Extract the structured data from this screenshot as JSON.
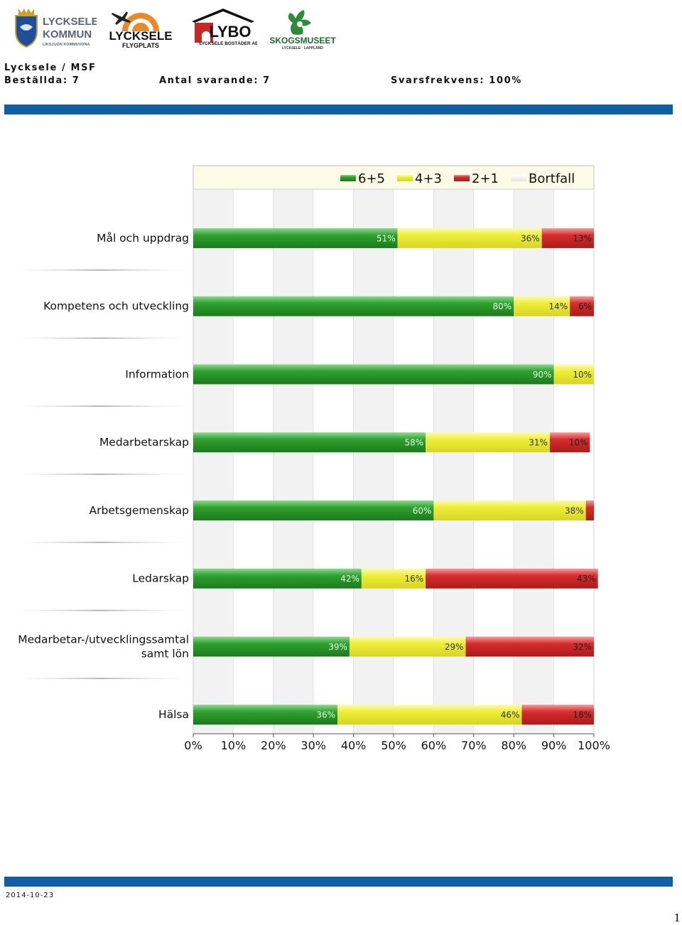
{
  "header": {
    "logos": [
      {
        "name": "lycksele-kommun-logo",
        "lines": [
          "LYCKSELE",
          "KOMMUN",
          "LIKSJUON KOMMUVDNA"
        ]
      },
      {
        "name": "lycksele-flygplats-logo",
        "lines": [
          "LYCKSELE",
          "FLYGPLATS"
        ]
      },
      {
        "name": "lybo-logo",
        "lines": [
          "LYBO",
          "LYCKSELE BOSTÄDER AB"
        ]
      },
      {
        "name": "skogsmuseet-logo",
        "lines": [
          "SKOGSMUSEET",
          "LYCKSELE · LAPPLAND"
        ]
      }
    ],
    "path": "Lycksele / MSF",
    "ordered": "Beställda: 7",
    "respondents": "Antal svarande: 7",
    "response_rate": "Svarsfrekvens: 100%"
  },
  "footer": {
    "date": "2014-10-23",
    "page": "1"
  },
  "colors": {
    "accent_bar": "#0f5fa6",
    "green": "#2ea22e",
    "yellow": "#eeee3a",
    "red": "#d72d2d",
    "grey": "#f2f2f2"
  },
  "chart_data": {
    "type": "bar",
    "orientation": "horizontal",
    "stacked": true,
    "percent": true,
    "xlim": [
      0,
      100
    ],
    "x_ticks": [
      "0%",
      "10%",
      "20%",
      "30%",
      "40%",
      "50%",
      "60%",
      "70%",
      "80%",
      "90%",
      "100%"
    ],
    "legend_position": "top",
    "legend": [
      "6+5",
      "4+3",
      "2+1",
      "Bortfall"
    ],
    "categories": [
      [
        "Mål och uppdrag"
      ],
      [
        "Kompetens och utveckling"
      ],
      [
        "Information"
      ],
      [
        "Medarbetarskap"
      ],
      [
        "Arbetsgemenskap"
      ],
      [
        "Ledarskap"
      ],
      [
        "Medarbetar-/utvecklingssamtal",
        "samt lön"
      ],
      [
        "Hälsa"
      ]
    ],
    "series": [
      {
        "name": "6+5",
        "values": [
          51,
          80,
          90,
          58,
          60,
          42,
          39,
          36
        ],
        "labels": [
          "51%",
          "80%",
          "90%",
          "58%",
          "60%",
          "42%",
          "39%",
          "36%"
        ]
      },
      {
        "name": "4+3",
        "values": [
          36,
          14,
          10,
          31,
          38,
          16,
          29,
          46
        ],
        "labels": [
          "36%",
          "14%",
          "10%",
          "31%",
          "38%",
          "16%",
          "29%",
          "46%"
        ]
      },
      {
        "name": "2+1",
        "values": [
          13,
          6,
          0,
          10,
          2,
          43,
          32,
          18
        ],
        "labels": [
          "13%",
          "6%",
          "",
          "10%",
          "",
          "43%",
          "32%",
          "18%"
        ]
      },
      {
        "name": "Bortfall",
        "values": [
          0,
          0,
          0,
          0,
          0,
          0,
          0,
          0
        ],
        "labels": [
          "",
          "",
          "",
          "",
          "",
          "",
          "",
          ""
        ]
      }
    ]
  }
}
